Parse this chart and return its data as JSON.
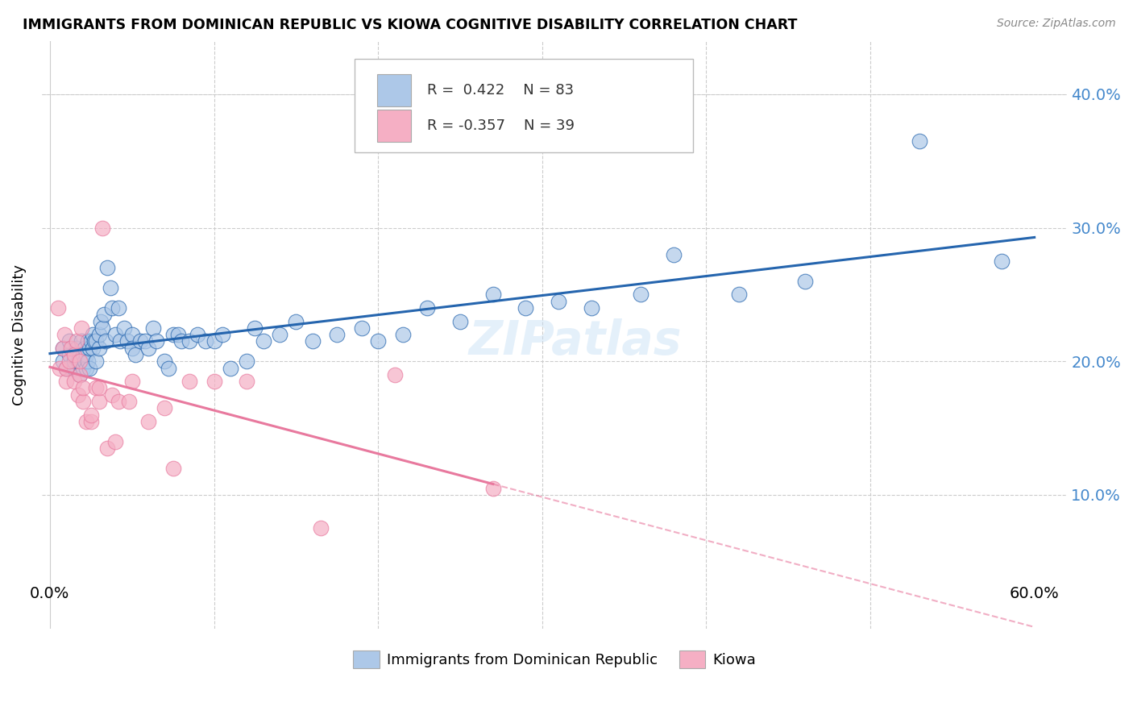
{
  "title": "IMMIGRANTS FROM DOMINICAN REPUBLIC VS KIOWA COGNITIVE DISABILITY CORRELATION CHART",
  "source": "Source: ZipAtlas.com",
  "ylabel": "Cognitive Disability",
  "y_ticks": [
    0.0,
    0.1,
    0.2,
    0.3,
    0.4
  ],
  "y_tick_labels": [
    "",
    "10.0%",
    "20.0%",
    "30.0%",
    "40.0%"
  ],
  "x_ticks": [
    0.0,
    0.1,
    0.2,
    0.3,
    0.4,
    0.5,
    0.6
  ],
  "xlim": [
    -0.005,
    0.62
  ],
  "ylim": [
    0.04,
    0.44
  ],
  "blue_R": 0.422,
  "blue_N": 83,
  "pink_R": -0.357,
  "pink_N": 39,
  "blue_color": "#adc8e8",
  "pink_color": "#f5afc4",
  "blue_line_color": "#2565ae",
  "pink_line_color": "#e8799e",
  "watermark": "ZIPatlas",
  "blue_scatter_x": [
    0.008,
    0.008,
    0.01,
    0.012,
    0.012,
    0.015,
    0.015,
    0.016,
    0.017,
    0.018,
    0.018,
    0.019,
    0.02,
    0.02,
    0.021,
    0.021,
    0.022,
    0.022,
    0.023,
    0.023,
    0.024,
    0.024,
    0.025,
    0.026,
    0.026,
    0.027,
    0.028,
    0.028,
    0.03,
    0.03,
    0.031,
    0.032,
    0.033,
    0.034,
    0.035,
    0.037,
    0.038,
    0.04,
    0.042,
    0.043,
    0.045,
    0.047,
    0.05,
    0.05,
    0.052,
    0.055,
    0.058,
    0.06,
    0.063,
    0.065,
    0.07,
    0.072,
    0.075,
    0.078,
    0.08,
    0.085,
    0.09,
    0.095,
    0.1,
    0.105,
    0.11,
    0.12,
    0.125,
    0.13,
    0.14,
    0.15,
    0.16,
    0.175,
    0.19,
    0.2,
    0.215,
    0.23,
    0.25,
    0.27,
    0.29,
    0.31,
    0.33,
    0.36,
    0.38,
    0.42,
    0.46,
    0.53,
    0.58
  ],
  "blue_scatter_y": [
    0.2,
    0.21,
    0.195,
    0.205,
    0.215,
    0.195,
    0.2,
    0.21,
    0.2,
    0.19,
    0.205,
    0.215,
    0.195,
    0.205,
    0.2,
    0.21,
    0.195,
    0.205,
    0.2,
    0.215,
    0.195,
    0.21,
    0.215,
    0.21,
    0.22,
    0.215,
    0.2,
    0.215,
    0.21,
    0.22,
    0.23,
    0.225,
    0.235,
    0.215,
    0.27,
    0.255,
    0.24,
    0.22,
    0.24,
    0.215,
    0.225,
    0.215,
    0.22,
    0.21,
    0.205,
    0.215,
    0.215,
    0.21,
    0.225,
    0.215,
    0.2,
    0.195,
    0.22,
    0.22,
    0.215,
    0.215,
    0.22,
    0.215,
    0.215,
    0.22,
    0.195,
    0.2,
    0.225,
    0.215,
    0.22,
    0.23,
    0.215,
    0.22,
    0.225,
    0.215,
    0.22,
    0.24,
    0.23,
    0.25,
    0.24,
    0.245,
    0.24,
    0.25,
    0.28,
    0.25,
    0.26,
    0.365,
    0.275
  ],
  "pink_scatter_x": [
    0.005,
    0.006,
    0.008,
    0.009,
    0.01,
    0.01,
    0.012,
    0.013,
    0.015,
    0.015,
    0.016,
    0.017,
    0.018,
    0.018,
    0.019,
    0.02,
    0.02,
    0.022,
    0.025,
    0.025,
    0.028,
    0.03,
    0.03,
    0.032,
    0.035,
    0.038,
    0.04,
    0.042,
    0.048,
    0.05,
    0.06,
    0.07,
    0.075,
    0.085,
    0.1,
    0.12,
    0.165,
    0.21,
    0.27
  ],
  "pink_scatter_y": [
    0.24,
    0.195,
    0.21,
    0.22,
    0.185,
    0.195,
    0.2,
    0.21,
    0.185,
    0.205,
    0.215,
    0.175,
    0.19,
    0.2,
    0.225,
    0.17,
    0.18,
    0.155,
    0.155,
    0.16,
    0.18,
    0.17,
    0.18,
    0.3,
    0.135,
    0.175,
    0.14,
    0.17,
    0.17,
    0.185,
    0.155,
    0.165,
    0.12,
    0.185,
    0.185,
    0.185,
    0.075,
    0.19,
    0.105
  ]
}
